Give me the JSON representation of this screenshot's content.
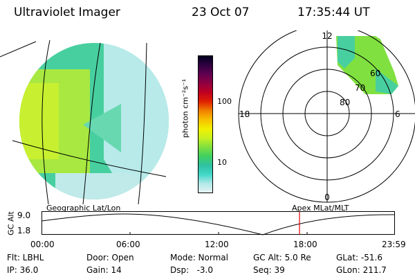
{
  "header": {
    "title": "Ultraviolet Imager",
    "date": "23 Oct 07",
    "time": "17:35:44 UT"
  },
  "colorbar": {
    "label": "photon cm⁻²s⁻¹",
    "ticks": [
      "100",
      "10"
    ],
    "scale": "log",
    "colors": [
      "#e8f4f4",
      "#b0e8e8",
      "#40d8c8",
      "#30c0a0",
      "#40d060",
      "#80e040",
      "#c8f020",
      "#f0f000",
      "#f8c000",
      "#f08000",
      "#e02000",
      "#c00020",
      "#900040",
      "#600050",
      "#300040",
      "#000020"
    ]
  },
  "geo_panel": {
    "caption": "Geographic Lat/Lon"
  },
  "polar_panel": {
    "caption": "Apex MLat/MLT",
    "mlt_labels": {
      "top": "12",
      "left": "18",
      "right": "6",
      "bottom": "0"
    },
    "lat_labels": [
      "60",
      "70",
      "80"
    ]
  },
  "orbit_plot": {
    "ylabel": "GC Alt",
    "ytick_top": "9.0",
    "ytick_bottom": "1.8",
    "xticks": [
      "00:00",
      "06:00",
      "12:00",
      "18:00",
      "23:59"
    ],
    "current_time_marker_color": "#e00000"
  },
  "info": {
    "flt": "Flt: LBHL",
    "ip": "IP: 36.0",
    "door": "Door: Open",
    "gain": "Gain: 14",
    "mode": "Mode: Normal",
    "dsp": "Dsp:   -3.0",
    "gcalt": "GC Alt: 5.0 Re",
    "seq": "Seq: 39",
    "glat": "GLat: -51.6",
    "glon": "GLon: 211.7"
  }
}
